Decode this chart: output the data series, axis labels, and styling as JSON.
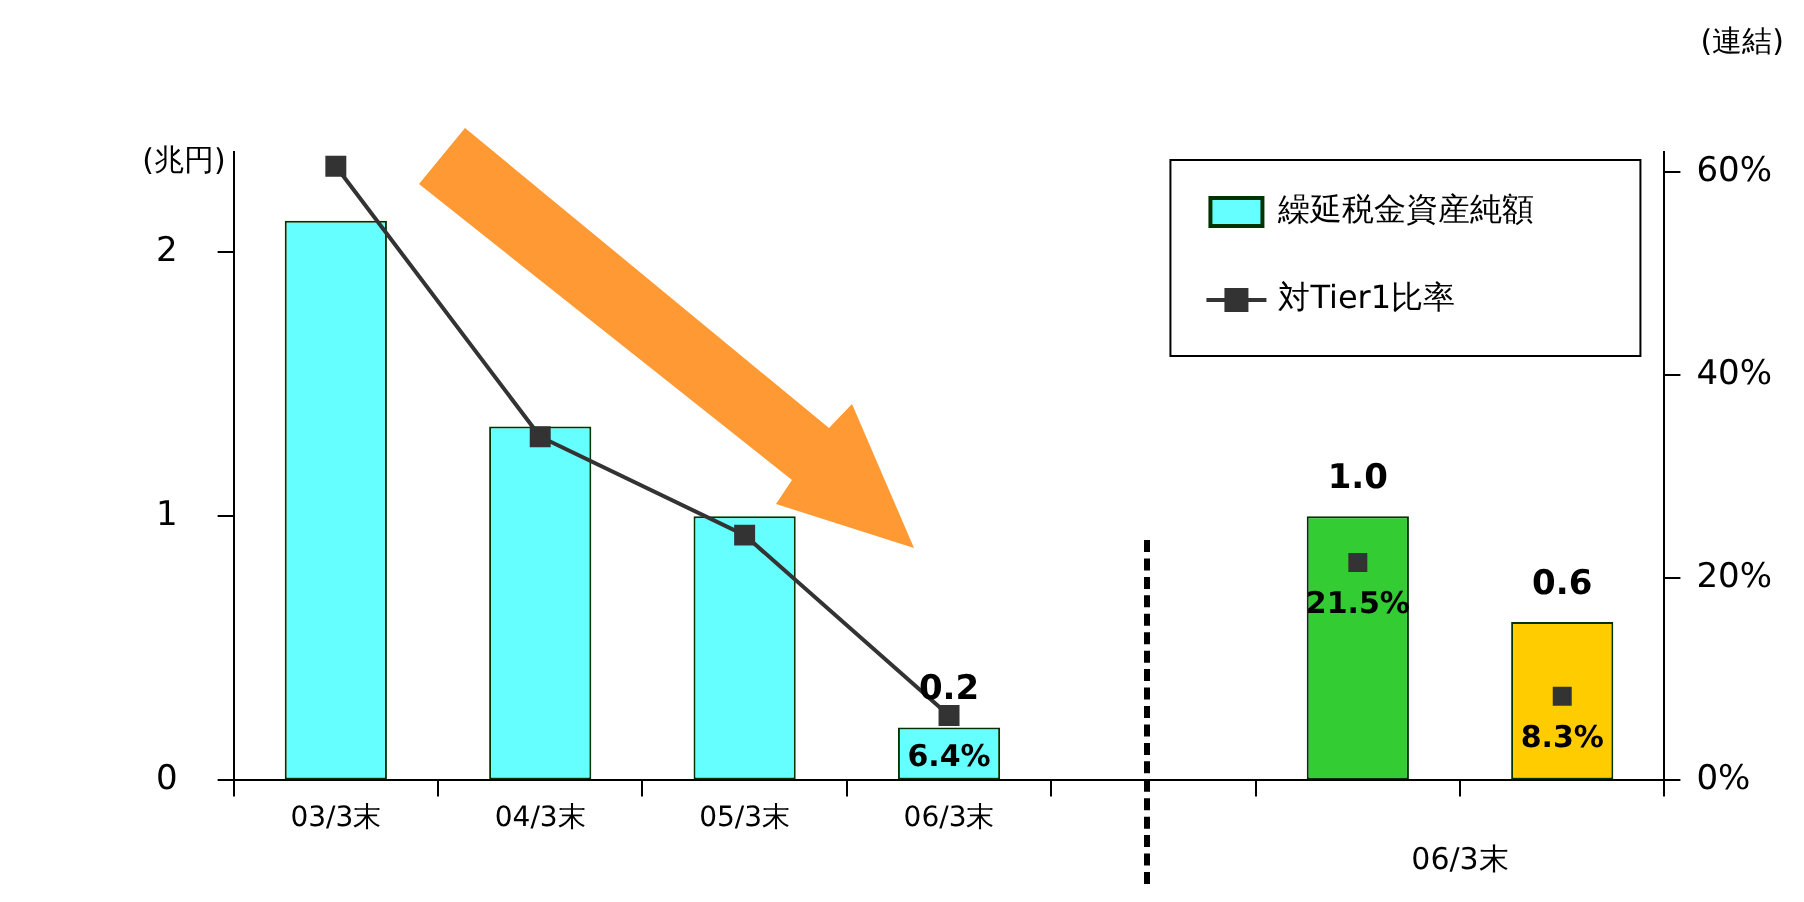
{
  "chart_data": {
    "type": "bar",
    "ylabel": "(兆円)",
    "categories": [
      "03/3末",
      "04/3末",
      "05/3末",
      "06/3末",
      null,
      null,
      null
    ],
    "series": [
      {
        "name": "繰延税金資産純額",
        "colors": [
          "#66ffff",
          "#66ffff",
          "#66ffff",
          "#66ffff",
          null,
          "#33cc33",
          "#ffcc00"
        ],
        "values": [
          2.12,
          1.34,
          1.0,
          0.2,
          null,
          1.0,
          0.6
        ],
        "value_labels": [
          null,
          null,
          null,
          "0.2",
          null,
          "1.0",
          "0.6"
        ]
      },
      {
        "name": "対Tier1比率",
        "type": "line",
        "axis": "y2",
        "color": "#333333",
        "marker": "square",
        "values": [
          60.6,
          33.9,
          24.2,
          6.4,
          null,
          null,
          null
        ],
        "value_labels": [
          null,
          null,
          null,
          "6.4%",
          null,
          null,
          null
        ]
      },
      {
        "type": "scatter",
        "axis": "y2",
        "color": "#333333",
        "marker": "square",
        "values": [
          null,
          null,
          null,
          null,
          null,
          21.5,
          8.3
        ],
        "value_labels": [
          null,
          null,
          null,
          null,
          null,
          "21.5%",
          "8.3%"
        ]
      }
    ],
    "ylim": [
      0,
      2.38
    ],
    "yticks": [
      0,
      1,
      2
    ],
    "y2lim": [
      0,
      62
    ],
    "y2ticks": [
      {
        "value": 0,
        "label": "0%"
      },
      {
        "value": 20,
        "label": "20%"
      },
      {
        "value": 40,
        "label": "40%"
      },
      {
        "value": 60,
        "label": "60%"
      }
    ],
    "grid": false,
    "legend": "top right",
    "annotations": [
      "(連結)",
      "06/3末"
    ]
  }
}
